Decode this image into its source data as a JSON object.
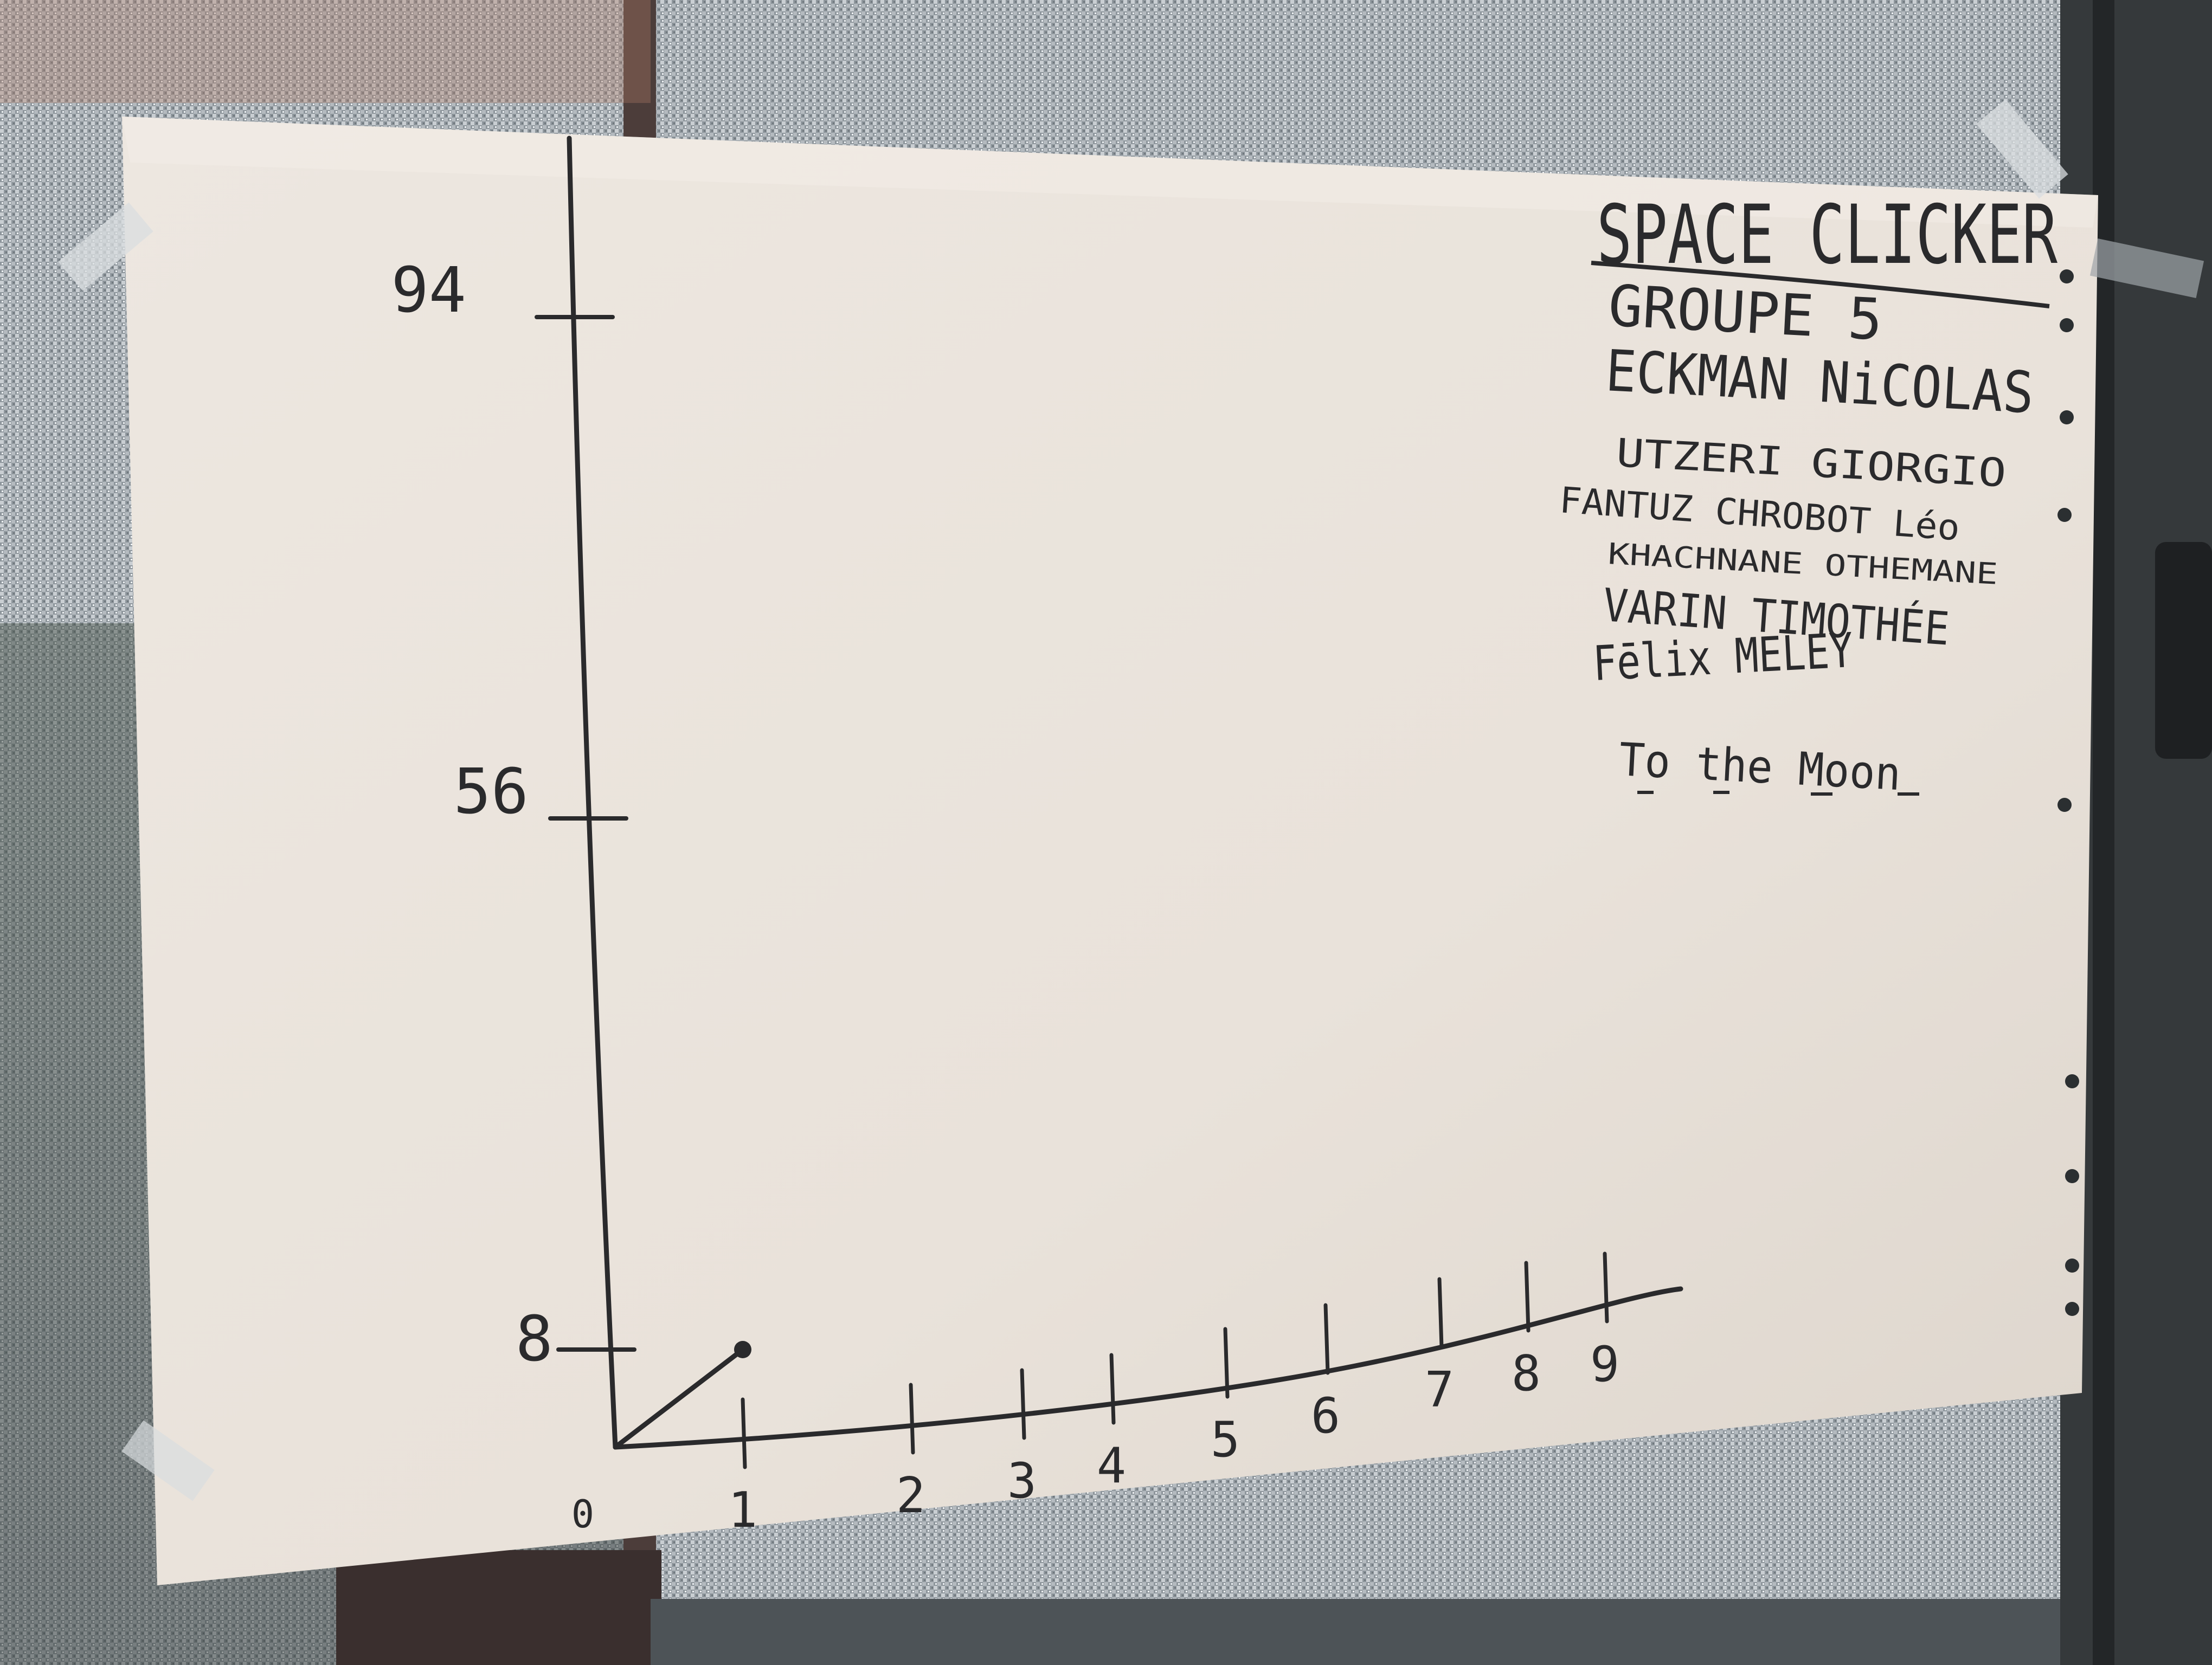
{
  "chart_data": {
    "type": "line",
    "title": "SPACE CLICKER",
    "xlabel": "",
    "ylabel": "",
    "origin_label": "0",
    "x_ticks": [
      "1",
      "2",
      "3",
      "4",
      "5",
      "6",
      "7",
      "8",
      "9"
    ],
    "y_ticks": [
      "8",
      "56",
      "94"
    ],
    "series": [
      {
        "x": [
          0,
          1
        ],
        "y": [
          0,
          8
        ]
      }
    ],
    "colors": {
      "ink": "#2a2a2c",
      "paper": "#ece6df"
    }
  },
  "notes": {
    "group": "GROUPE 5",
    "members": [
      "ECKMAN NiCOLAS",
      "UTZERI GIORGIO",
      "FANTUZ CHROBOT Léo",
      "KHACHNANE OTHEMANE",
      "VARIN TIMOTHÉE",
      "Fēlix MELEY"
    ],
    "tagline": "To the Moon"
  }
}
